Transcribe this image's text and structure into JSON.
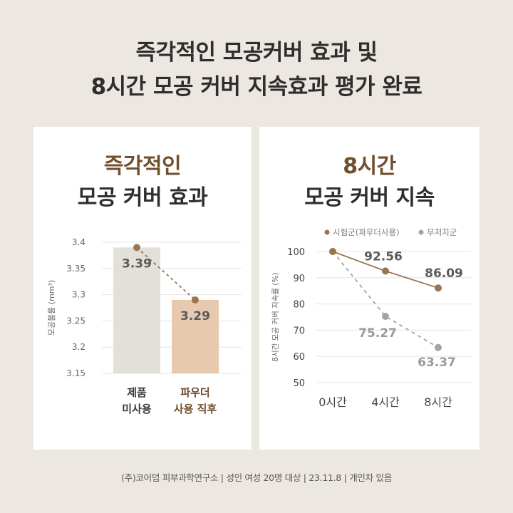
{
  "headline": {
    "line1": "즉각적인 모공커버 효과 및",
    "line2": "8시간 모공 커버 지속효과 평가 완료"
  },
  "left_card": {
    "title_line1": "즉각적인",
    "title_line2": "모공 커버 효과"
  },
  "right_card": {
    "title_line1": "8시간",
    "title_line2": "모공 커버 지속"
  },
  "footer": "(주)코어덤 피부과학연구소 | 성인 여성 20명 대상 | 23.11.8 | 개인차 있음",
  "colors": {
    "brown": "#9a7550",
    "gray": "#a3a3a3",
    "bar_untreated": "#e3dfd9",
    "bar_powder": "#e6c9ae"
  },
  "chart_data": [
    {
      "type": "bar",
      "ylabel": "모공볼륨 (mm³)",
      "ylim": [
        3.15,
        3.4
      ],
      "yticks": [
        "3.4",
        "3.35",
        "3.3",
        "3.25",
        "3.2",
        "3.15"
      ],
      "categories": [
        [
          "제품",
          "미사용"
        ],
        [
          "파우더",
          "사용 직후"
        ]
      ],
      "values": [
        3.39,
        3.29
      ],
      "value_labels": [
        "3.39",
        "3.29"
      ],
      "grid": true
    },
    {
      "type": "line",
      "ylabel": "8시간 모공 커버 지속률 (%)",
      "ylim": [
        50,
        100
      ],
      "yticks": [
        "100",
        "90",
        "80",
        "70",
        "60",
        "50"
      ],
      "categories": [
        "0시간",
        "4시간",
        "8시간"
      ],
      "legend": "top-right",
      "grid": true,
      "series": [
        {
          "name": "시험군(파우더사용)",
          "values": [
            100,
            92.56,
            86.09
          ],
          "value_labels": [
            "",
            "92.56",
            "86.09"
          ]
        },
        {
          "name": "무처치군",
          "values": [
            100,
            75.27,
            63.37
          ],
          "value_labels": [
            "",
            "75.27",
            "63.37"
          ]
        }
      ]
    }
  ]
}
